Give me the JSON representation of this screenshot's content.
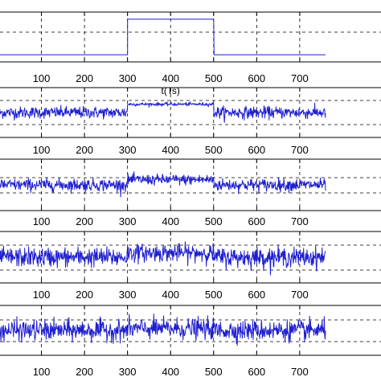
{
  "chart_data": [
    {
      "type": "line",
      "xlabel": "",
      "xlim": [
        0,
        760
      ],
      "ylim": [
        -0.2,
        1.2
      ],
      "xticks": [
        100,
        200,
        300,
        400,
        500,
        600,
        700
      ],
      "grid": true,
      "color": "#1f1fd0",
      "signal": "rectangular pulse",
      "baseline": 0,
      "pulse": {
        "start": 300,
        "end": 500,
        "level": 1
      },
      "noise_std": 0
    },
    {
      "type": "line",
      "xlabel": "t(Ts)",
      "xlim": [
        0,
        760
      ],
      "ylim": [
        -3,
        3
      ],
      "xticks": [
        100,
        200,
        300,
        400,
        500,
        600,
        700
      ],
      "grid": true,
      "color": "#1f1fd0",
      "signal": "noisy pulse",
      "baseline": 0,
      "pulse": {
        "start": 300,
        "end": 500,
        "level": 1
      },
      "noise_std": 0.35,
      "pulse_noise_std": 0.1
    },
    {
      "type": "line",
      "xlabel": "",
      "xlim": [
        0,
        760
      ],
      "ylim": [
        -3,
        3
      ],
      "xticks": [
        100,
        200,
        300,
        400,
        500,
        600,
        700
      ],
      "grid": true,
      "color": "#1f1fd0",
      "signal": "noisy pulse",
      "baseline": 0,
      "pulse": {
        "start": 300,
        "end": 500,
        "level": 0.6
      },
      "noise_std": 0.35,
      "pulse_noise_std": 0.3
    },
    {
      "type": "line",
      "xlabel": "",
      "xlim": [
        0,
        760
      ],
      "ylim": [
        -3,
        3
      ],
      "xticks": [
        100,
        200,
        300,
        400,
        500,
        600,
        700
      ],
      "grid": true,
      "color": "#1f1fd0",
      "signal": "noisy pulse",
      "baseline": 0,
      "pulse": {
        "start": 300,
        "end": 500,
        "level": 0.5
      },
      "noise_std": 0.55,
      "pulse_noise_std": 0.5
    },
    {
      "type": "line",
      "xlabel": "",
      "xlim": [
        0,
        760
      ],
      "ylim": [
        -3,
        3
      ],
      "xticks": [
        100,
        200,
        300,
        400,
        500,
        600,
        700
      ],
      "grid": true,
      "color": "#1f1fd0",
      "signal": "noisy pulse",
      "baseline": 0,
      "pulse": {
        "start": 300,
        "end": 500,
        "level": 0.2
      },
      "noise_std": 0.6,
      "pulse_noise_std": 0.6
    }
  ]
}
